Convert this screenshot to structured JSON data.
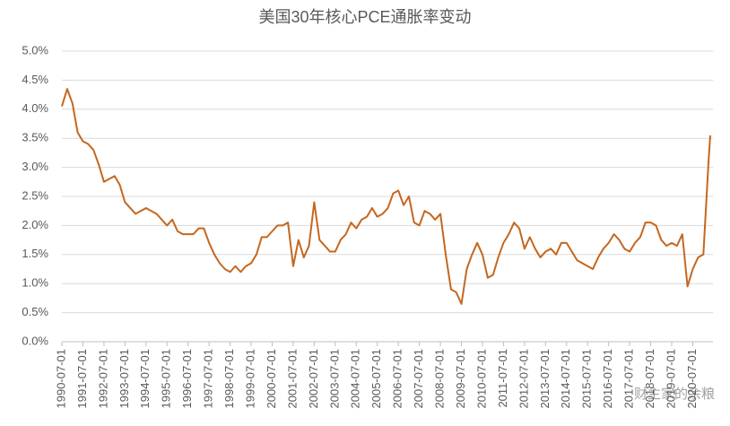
{
  "chart_data": {
    "type": "line",
    "title": "美国30年核心PCE通胀率变动",
    "watermark": "财主家的余粮",
    "color": "#c5671f",
    "grid": true,
    "ylim": [
      0,
      5
    ],
    "yticks": [
      {
        "value": 0,
        "label": "0.0%"
      },
      {
        "value": 0.5,
        "label": "0.5%"
      },
      {
        "value": 1,
        "label": "1.0%"
      },
      {
        "value": 1.5,
        "label": "1.5%"
      },
      {
        "value": 2,
        "label": "2.0%"
      },
      {
        "value": 2.5,
        "label": "2.5%"
      },
      {
        "value": 3,
        "label": "3.0%"
      },
      {
        "value": 3.5,
        "label": "3.5%"
      },
      {
        "value": 4,
        "label": "4.0%"
      },
      {
        "value": 4.5,
        "label": "4.5%"
      },
      {
        "value": 5,
        "label": "5.0%"
      }
    ],
    "xlim": [
      "1990-07-01",
      "2021-05-01"
    ],
    "xticks": [
      "1990-07-01",
      "1991-07-01",
      "1992-07-01",
      "1993-07-01",
      "1994-07-01",
      "1995-07-01",
      "1996-07-01",
      "1997-07-01",
      "1998-07-01",
      "1999-07-01",
      "2000-07-01",
      "2001-07-01",
      "2002-07-01",
      "2003-07-01",
      "2004-07-01",
      "2005-07-01",
      "2006-07-01",
      "2007-07-01",
      "2008-07-01",
      "2009-07-01",
      "2010-07-01",
      "2011-07-01",
      "2012-07-01",
      "2013-07-01",
      "2014-07-01",
      "2015-07-01",
      "2016-07-01",
      "2017-07-01",
      "2018-07-01",
      "2019-07-01",
      "2020-07-01"
    ],
    "x": [
      "1990-07-01",
      "1990-10-01",
      "1991-01-01",
      "1991-04-01",
      "1991-07-01",
      "1991-10-01",
      "1992-01-01",
      "1992-04-01",
      "1992-07-01",
      "1992-10-01",
      "1993-01-01",
      "1993-04-01",
      "1993-07-01",
      "1993-10-01",
      "1994-01-01",
      "1994-04-01",
      "1994-07-01",
      "1994-10-01",
      "1995-01-01",
      "1995-04-01",
      "1995-07-01",
      "1995-10-01",
      "1996-01-01",
      "1996-04-01",
      "1996-07-01",
      "1996-10-01",
      "1997-01-01",
      "1997-04-01",
      "1997-07-01",
      "1997-10-01",
      "1998-01-01",
      "1998-04-01",
      "1998-07-01",
      "1998-10-01",
      "1999-01-01",
      "1999-04-01",
      "1999-07-01",
      "1999-10-01",
      "2000-01-01",
      "2000-04-01",
      "2000-07-01",
      "2000-10-01",
      "2001-01-01",
      "2001-04-01",
      "2001-07-01",
      "2001-10-01",
      "2002-01-01",
      "2002-04-01",
      "2002-07-01",
      "2002-10-01",
      "2003-01-01",
      "2003-04-01",
      "2003-07-01",
      "2003-10-01",
      "2004-01-01",
      "2004-04-01",
      "2004-07-01",
      "2004-10-01",
      "2005-01-01",
      "2005-04-01",
      "2005-07-01",
      "2005-10-01",
      "2006-01-01",
      "2006-04-01",
      "2006-07-01",
      "2006-10-01",
      "2007-01-01",
      "2007-04-01",
      "2007-07-01",
      "2007-10-01",
      "2008-01-01",
      "2008-04-01",
      "2008-07-01",
      "2008-10-01",
      "2009-01-01",
      "2009-04-01",
      "2009-07-01",
      "2009-10-01",
      "2010-01-01",
      "2010-04-01",
      "2010-07-01",
      "2010-10-01",
      "2011-01-01",
      "2011-04-01",
      "2011-07-01",
      "2011-10-01",
      "2012-01-01",
      "2012-04-01",
      "2012-07-01",
      "2012-10-01",
      "2013-01-01",
      "2013-04-01",
      "2013-07-01",
      "2013-10-01",
      "2014-01-01",
      "2014-04-01",
      "2014-07-01",
      "2014-10-01",
      "2015-01-01",
      "2015-04-01",
      "2015-07-01",
      "2015-10-01",
      "2016-01-01",
      "2016-04-01",
      "2016-07-01",
      "2016-10-01",
      "2017-01-01",
      "2017-04-01",
      "2017-07-01",
      "2017-10-01",
      "2018-01-01",
      "2018-04-01",
      "2018-07-01",
      "2018-10-01",
      "2019-01-01",
      "2019-04-01",
      "2019-07-01",
      "2019-10-01",
      "2020-01-01",
      "2020-04-01",
      "2020-07-01",
      "2020-10-01",
      "2021-01-01",
      "2021-04-01",
      "2021-05-01"
    ],
    "values": [
      4.05,
      4.35,
      4.1,
      3.6,
      3.45,
      3.4,
      3.3,
      3.05,
      2.75,
      2.8,
      2.85,
      2.7,
      2.4,
      2.3,
      2.2,
      2.25,
      2.3,
      2.25,
      2.2,
      2.1,
      2.0,
      2.1,
      1.9,
      1.85,
      1.85,
      1.85,
      1.95,
      1.95,
      1.7,
      1.5,
      1.35,
      1.25,
      1.2,
      1.3,
      1.2,
      1.3,
      1.35,
      1.5,
      1.8,
      1.8,
      1.9,
      2.0,
      2.0,
      2.05,
      1.3,
      1.75,
      1.45,
      1.65,
      2.4,
      1.75,
      1.65,
      1.55,
      1.55,
      1.75,
      1.85,
      2.05,
      1.95,
      2.1,
      2.15,
      2.3,
      2.15,
      2.2,
      2.3,
      2.55,
      2.6,
      2.35,
      2.5,
      2.05,
      2.0,
      2.25,
      2.2,
      2.1,
      2.2,
      1.5,
      0.9,
      0.85,
      0.65,
      1.25,
      1.5,
      1.7,
      1.5,
      1.1,
      1.15,
      1.45,
      1.7,
      1.85,
      2.05,
      1.95,
      1.6,
      1.8,
      1.6,
      1.45,
      1.55,
      1.6,
      1.5,
      1.7,
      1.7,
      1.55,
      1.4,
      1.35,
      1.3,
      1.25,
      1.45,
      1.6,
      1.7,
      1.85,
      1.75,
      1.6,
      1.55,
      1.7,
      1.8,
      2.05,
      2.05,
      2.0,
      1.75,
      1.65,
      1.7,
      1.65,
      1.85,
      0.95,
      1.25,
      1.45,
      1.5,
      3.1,
      3.55
    ]
  }
}
